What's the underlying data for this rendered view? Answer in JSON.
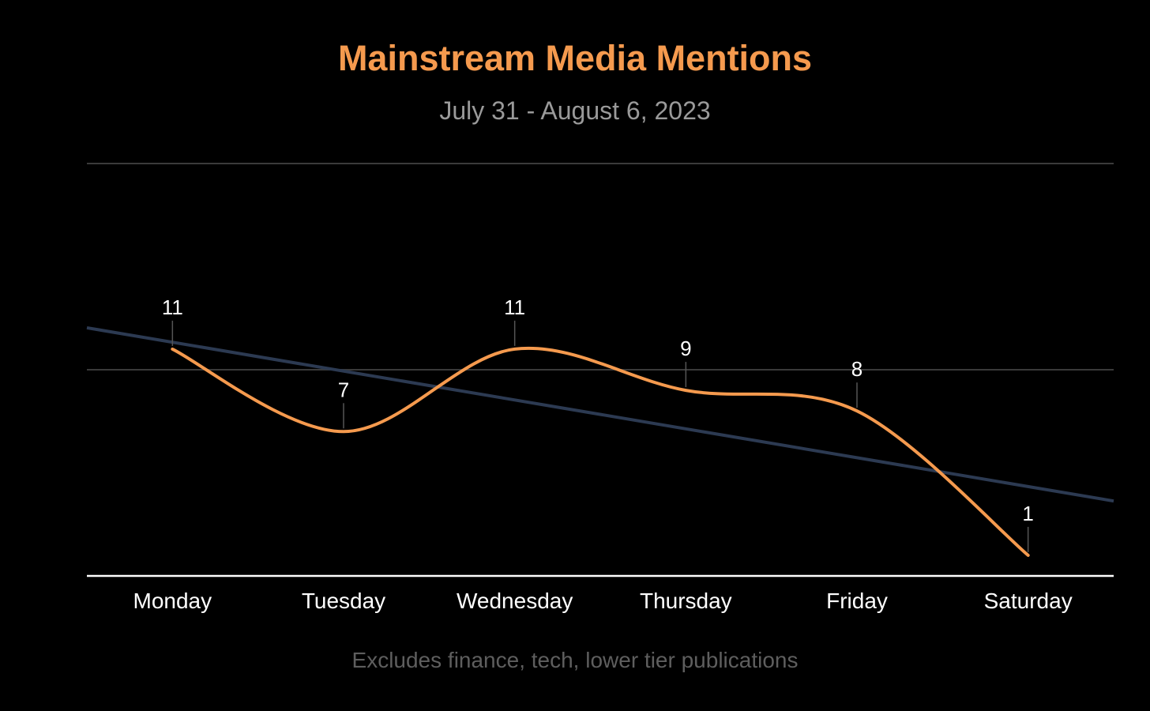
{
  "colors": {
    "background": "#000000",
    "title": "#F59A4E",
    "subtitle": "#9A9A9A",
    "note": "#5E5E5E",
    "series_line": "#F59A4E",
    "trend_line": "#2C3A52",
    "gridline": "#3A3A3A",
    "axis_line": "#FFFFFF",
    "label_text": "#FFFFFF"
  },
  "chart_data": {
    "type": "line",
    "title": "Mainstream Media Mentions",
    "subtitle": "July 31 - August 6, 2023",
    "note": "Excludes finance, tech, lower tier publications",
    "categories": [
      "Monday",
      "Tuesday",
      "Wednesday",
      "Thursday",
      "Friday",
      "Saturday"
    ],
    "series": [
      {
        "values": [
          11,
          7,
          11,
          9,
          8,
          1
        ],
        "data_labels": [
          "11",
          "7",
          "11",
          "9",
          "8",
          "1"
        ]
      }
    ],
    "trendline": {
      "type": "linear",
      "color": "#2C3A52"
    },
    "smooth": true,
    "ylim": [
      0,
      20
    ],
    "gridlines": [
      10,
      20
    ],
    "y_axis_labels_shown": false,
    "legend": "none"
  }
}
